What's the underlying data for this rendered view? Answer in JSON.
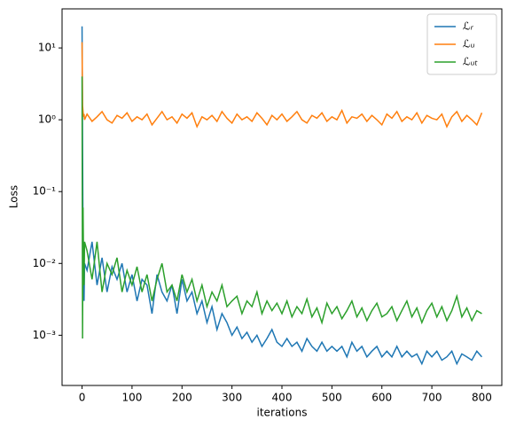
{
  "chart_data": {
    "type": "line",
    "xlabel": "iterations",
    "ylabel": "Loss",
    "log_y": true,
    "legend": "upper right",
    "xlim": [
      -40,
      840
    ],
    "ylim": [
      0.0002,
      35
    ],
    "xticks": [
      0,
      100,
      200,
      300,
      400,
      500,
      600,
      700,
      800
    ],
    "yticks": [
      {
        "value": 0.001,
        "label": "10⁻³"
      },
      {
        "value": 0.01,
        "label": "10⁻²"
      },
      {
        "value": 0.1,
        "label": "10⁻¹"
      },
      {
        "value": 1,
        "label": "10⁰"
      },
      {
        "value": 10,
        "label": "10¹"
      }
    ],
    "x": [
      0,
      1,
      2,
      3,
      4,
      5,
      10,
      20,
      30,
      40,
      50,
      60,
      70,
      80,
      90,
      100,
      110,
      120,
      130,
      140,
      150,
      160,
      170,
      180,
      190,
      200,
      210,
      220,
      230,
      240,
      250,
      260,
      270,
      280,
      290,
      300,
      310,
      320,
      330,
      340,
      350,
      360,
      370,
      380,
      390,
      400,
      410,
      420,
      430,
      440,
      450,
      460,
      470,
      480,
      490,
      500,
      510,
      520,
      530,
      540,
      550,
      560,
      570,
      580,
      590,
      600,
      610,
      620,
      630,
      640,
      650,
      660,
      670,
      680,
      690,
      700,
      710,
      720,
      730,
      740,
      750,
      760,
      770,
      780,
      790,
      800
    ],
    "series": [
      {
        "name": "ℒᵣ",
        "color": "#1f77b4",
        "values": [
          20,
          0.5,
          0.02,
          0.006,
          0.003,
          0.01,
          0.008,
          0.02,
          0.005,
          0.012,
          0.004,
          0.009,
          0.006,
          0.01,
          0.004,
          0.007,
          0.003,
          0.006,
          0.005,
          0.002,
          0.007,
          0.004,
          0.003,
          0.005,
          0.002,
          0.006,
          0.003,
          0.004,
          0.002,
          0.003,
          0.0015,
          0.0025,
          0.0012,
          0.002,
          0.0015,
          0.001,
          0.0013,
          0.0009,
          0.0011,
          0.0008,
          0.001,
          0.0007,
          0.0009,
          0.0012,
          0.0008,
          0.0007,
          0.0009,
          0.0007,
          0.0008,
          0.0006,
          0.0009,
          0.0007,
          0.0006,
          0.0008,
          0.0006,
          0.0007,
          0.0006,
          0.0007,
          0.0005,
          0.0008,
          0.0006,
          0.0007,
          0.0005,
          0.0006,
          0.0007,
          0.0005,
          0.0006,
          0.0005,
          0.0007,
          0.0005,
          0.0006,
          0.0005,
          0.00055,
          0.0004,
          0.0006,
          0.0005,
          0.0006,
          0.00045,
          0.0005,
          0.0006,
          0.0004,
          0.00055,
          0.0005,
          0.00045,
          0.0006,
          0.0005
        ]
      },
      {
        "name": "ℒᵤ",
        "color": "#ff7f0e",
        "values": [
          12,
          1.6,
          1.3,
          1.1,
          1.2,
          1.0,
          1.2,
          0.95,
          1.1,
          1.3,
          1.0,
          0.9,
          1.15,
          1.05,
          1.25,
          0.95,
          1.1,
          1.0,
          1.2,
          0.85,
          1.05,
          1.3,
          1.0,
          1.1,
          0.9,
          1.2,
          1.05,
          1.25,
          0.8,
          1.1,
          1.0,
          1.15,
          0.95,
          1.3,
          1.05,
          0.9,
          1.2,
          1.0,
          1.1,
          0.95,
          1.25,
          1.05,
          0.85,
          1.15,
          1.0,
          1.2,
          0.95,
          1.1,
          1.3,
          1.0,
          0.9,
          1.15,
          1.05,
          1.25,
          0.95,
          1.1,
          1.0,
          1.35,
          0.9,
          1.1,
          1.05,
          1.2,
          0.95,
          1.15,
          1.0,
          0.85,
          1.2,
          1.05,
          1.3,
          0.95,
          1.1,
          1.0,
          1.25,
          0.9,
          1.15,
          1.05,
          1.0,
          1.2,
          0.8,
          1.1,
          1.3,
          0.95,
          1.15,
          1.0,
          0.85,
          1.25
        ]
      },
      {
        "name": "ℒᵤₜ",
        "color": "#2ca02c",
        "values": [
          4,
          0.0009,
          0.06,
          0.01,
          0.005,
          0.02,
          0.015,
          0.006,
          0.02,
          0.004,
          0.01,
          0.007,
          0.012,
          0.004,
          0.008,
          0.005,
          0.009,
          0.004,
          0.007,
          0.003,
          0.006,
          0.01,
          0.004,
          0.005,
          0.003,
          0.007,
          0.004,
          0.006,
          0.003,
          0.005,
          0.0025,
          0.004,
          0.003,
          0.005,
          0.0025,
          0.003,
          0.0035,
          0.002,
          0.003,
          0.0025,
          0.004,
          0.002,
          0.003,
          0.0022,
          0.0028,
          0.002,
          0.003,
          0.0018,
          0.0025,
          0.002,
          0.0032,
          0.0018,
          0.0024,
          0.0015,
          0.0028,
          0.002,
          0.0025,
          0.0017,
          0.0022,
          0.003,
          0.0018,
          0.0024,
          0.0016,
          0.0022,
          0.0028,
          0.0018,
          0.002,
          0.0025,
          0.0016,
          0.0022,
          0.003,
          0.0018,
          0.0024,
          0.0015,
          0.0022,
          0.0028,
          0.0018,
          0.0025,
          0.0016,
          0.0022,
          0.0035,
          0.0018,
          0.0024,
          0.0016,
          0.0022,
          0.002
        ]
      }
    ]
  }
}
